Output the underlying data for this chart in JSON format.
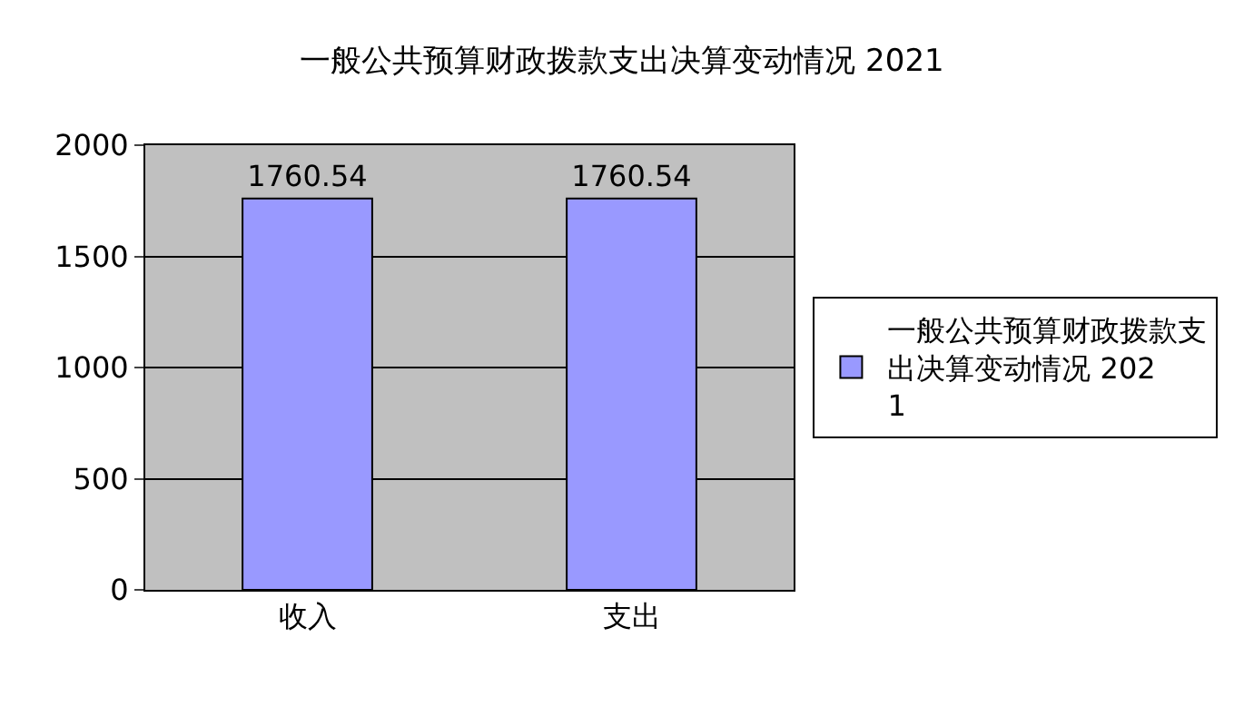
{
  "chart_data": {
    "type": "bar",
    "title": "一般公共预算财政拨款支出决算变动情况 2021",
    "categories": [
      "收入",
      "支出"
    ],
    "series": [
      {
        "name": "一般公共预算财政拨款支出决算变动情况 2021",
        "color": "#9999ff",
        "values": [
          1760.54,
          1760.54
        ]
      }
    ],
    "ylim": [
      0,
      2000
    ],
    "yticks": [
      0,
      500,
      1000,
      1500,
      2000
    ],
    "grid": "y",
    "legend": "right",
    "data_labels": true
  }
}
